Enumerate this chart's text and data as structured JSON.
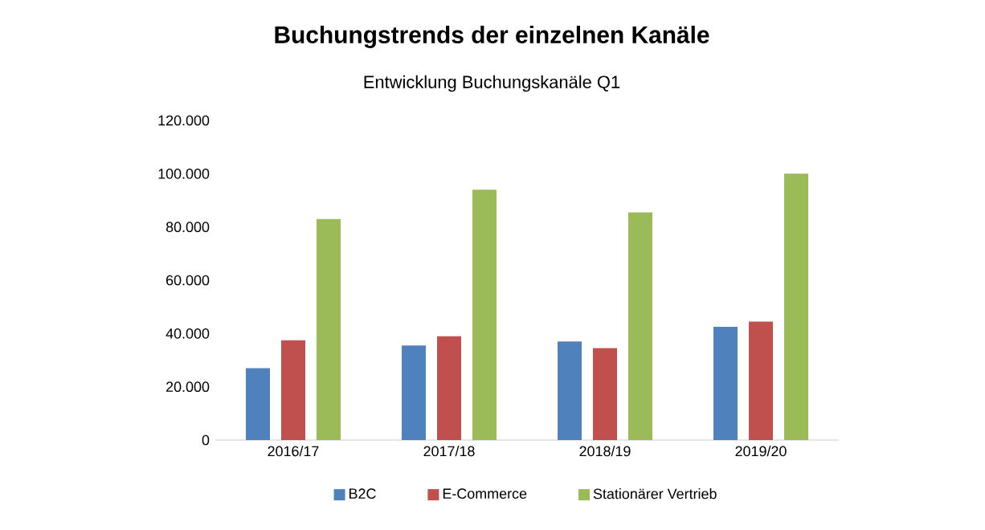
{
  "chart_data": {
    "type": "bar",
    "title": "Buchungstrends der einzelnen Kanäle",
    "subtitle": "Entwicklung Buchungskanäle Q1",
    "categories": [
      "2016/17",
      "2017/18",
      "2018/19",
      "2019/20"
    ],
    "series": [
      {
        "name": "B2C",
        "color": "#4f81bd",
        "values": [
          27000,
          35500,
          37000,
          42500
        ]
      },
      {
        "name": "E-Commerce",
        "color": "#c0504d",
        "values": [
          37500,
          39000,
          34500,
          44500
        ]
      },
      {
        "name": "Stationärer Vertrieb",
        "color": "#9bbb59",
        "values": [
          83000,
          94000,
          85500,
          100000
        ]
      }
    ],
    "ylim": [
      0,
      120000
    ],
    "yticks": [
      {
        "value": 0,
        "label": "0"
      },
      {
        "value": 20000,
        "label": "20.000"
      },
      {
        "value": 40000,
        "label": "40.000"
      },
      {
        "value": 60000,
        "label": "60.000"
      },
      {
        "value": 80000,
        "label": "80.000"
      },
      {
        "value": 100000,
        "label": "100.000"
      },
      {
        "value": 120000,
        "label": "120.000"
      }
    ],
    "grid": false,
    "legend": "bottom"
  }
}
